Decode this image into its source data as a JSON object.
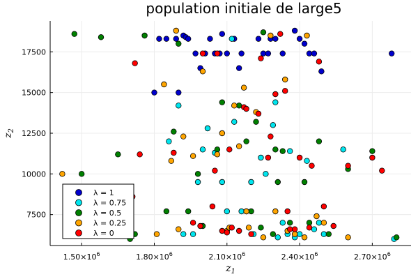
{
  "chart_data": {
    "type": "scatter",
    "title": "population initiale de large5",
    "xlabel": "z",
    "xlabel_sub": "1",
    "ylabel": "z",
    "ylabel_sub": "2",
    "xlim": [
      1370000,
      2860000
    ],
    "ylim": [
      5600000,
      19400
    ],
    "x_ticks": [
      1500000,
      1800000,
      2100000,
      2400000,
      2700000
    ],
    "x_tick_labels": [
      {
        "mantissa": "1.50×10",
        "exp": "6"
      },
      {
        "mantissa": "1.80×10",
        "exp": "6"
      },
      {
        "mantissa": "2.10×10",
        "exp": "6"
      },
      {
        "mantissa": "2.40×10",
        "exp": "6"
      },
      {
        "mantissa": "2.70×10",
        "exp": "6"
      }
    ],
    "y_ticks": [
      7500,
      10000,
      12500,
      15000,
      17500
    ],
    "y_tick_labels": [
      "7500",
      "10000",
      "12500",
      "15000",
      "17500"
    ],
    "grid": true,
    "legend_position": "bottom-left",
    "series": [
      {
        "name": "λ = 1",
        "color": "#0000cd",
        "points": [
          [
            1800000,
            15000
          ],
          [
            1820000,
            18300
          ],
          [
            1850000,
            18300
          ],
          [
            1890000,
            18300
          ],
          [
            1900000,
            15000
          ],
          [
            1920000,
            18500
          ],
          [
            1930000,
            18400
          ],
          [
            1940000,
            18300
          ],
          [
            1970000,
            17400
          ],
          [
            1990000,
            16500
          ],
          [
            2010000,
            17400
          ],
          [
            2030000,
            18300
          ],
          [
            2050000,
            17400
          ],
          [
            2070000,
            17400
          ],
          [
            2080000,
            18600
          ],
          [
            2100000,
            17400
          ],
          [
            2130000,
            18300
          ],
          [
            2150000,
            16500
          ],
          [
            2160000,
            17400
          ],
          [
            2230000,
            18300
          ],
          [
            2250000,
            17400
          ],
          [
            2270000,
            17400
          ],
          [
            2280000,
            18300
          ],
          [
            2300000,
            18300
          ],
          [
            2330000,
            17400
          ],
          [
            2380000,
            18800
          ],
          [
            2400000,
            18300
          ],
          [
            2420000,
            18000
          ],
          [
            2440000,
            17400
          ],
          [
            2460000,
            17400
          ],
          [
            2490000,
            16300
          ],
          [
            2780000,
            17400
          ]
        ]
      },
      {
        "name": "λ = 0.75",
        "color": "#00e5ee",
        "points": [
          [
            1860000,
            12000
          ],
          [
            1900000,
            14200
          ],
          [
            1920000,
            6300
          ],
          [
            1960000,
            6300
          ],
          [
            1980000,
            9500
          ],
          [
            2000000,
            11500
          ],
          [
            2020000,
            12800
          ],
          [
            2050000,
            11300
          ],
          [
            2080000,
            9500
          ],
          [
            2100000,
            7700
          ],
          [
            2120000,
            18300
          ],
          [
            2130000,
            13200
          ],
          [
            2160000,
            7700
          ],
          [
            2180000,
            7700
          ],
          [
            2200000,
            9500
          ],
          [
            2210000,
            6300
          ],
          [
            2240000,
            11000
          ],
          [
            2260000,
            10000
          ],
          [
            2290000,
            13000
          ],
          [
            2300000,
            14400
          ],
          [
            2310000,
            6100
          ],
          [
            2330000,
            7000
          ],
          [
            2350000,
            6300
          ],
          [
            2360000,
            11400
          ],
          [
            2380000,
            6100
          ],
          [
            2400000,
            6300
          ],
          [
            2430000,
            10800
          ],
          [
            2460000,
            6600
          ],
          [
            2480000,
            7000
          ],
          [
            2500000,
            6300
          ],
          [
            2580000,
            11500
          ],
          [
            2790000,
            6000
          ]
        ]
      },
      {
        "name": "λ = 0.5",
        "color": "#008000",
        "points": [
          [
            1470000,
            18600
          ],
          [
            1500000,
            10000
          ],
          [
            1580000,
            18400
          ],
          [
            1650000,
            11200
          ],
          [
            1690000,
            7000
          ],
          [
            1700000,
            6000
          ],
          [
            1720000,
            6300
          ],
          [
            1760000,
            18500
          ],
          [
            1850000,
            7700
          ],
          [
            1880000,
            12600
          ],
          [
            1900000,
            18000
          ],
          [
            1940000,
            7700
          ],
          [
            1980000,
            10000
          ],
          [
            2000000,
            6800
          ],
          [
            2060000,
            11500
          ],
          [
            2080000,
            14400
          ],
          [
            2150000,
            14200
          ],
          [
            2180000,
            12000
          ],
          [
            2200000,
            7700
          ],
          [
            2220000,
            13200
          ],
          [
            2240000,
            6700
          ],
          [
            2250000,
            18700
          ],
          [
            2290000,
            6300
          ],
          [
            2300000,
            11500
          ],
          [
            2310000,
            9500
          ],
          [
            2330000,
            11400
          ],
          [
            2360000,
            7000
          ],
          [
            2380000,
            6300
          ],
          [
            2420000,
            9500
          ],
          [
            2440000,
            7000
          ],
          [
            2480000,
            12000
          ],
          [
            2520000,
            6300
          ],
          [
            2600000,
            10300
          ],
          [
            2700000,
            11400
          ],
          [
            2800000,
            6100
          ]
        ]
      },
      {
        "name": "λ = 0.25",
        "color": "#ffa500",
        "points": [
          [
            1420000,
            10000
          ],
          [
            1810000,
            6300
          ],
          [
            1840000,
            15500
          ],
          [
            1870000,
            10800
          ],
          [
            1890000,
            18800
          ],
          [
            1900000,
            6600
          ],
          [
            1920000,
            12300
          ],
          [
            1960000,
            11100
          ],
          [
            2000000,
            16300
          ],
          [
            2060000,
            11200
          ],
          [
            2080000,
            12500
          ],
          [
            2100000,
            6500
          ],
          [
            2110000,
            6700
          ],
          [
            2130000,
            14200
          ],
          [
            2150000,
            11700
          ],
          [
            2170000,
            15300
          ],
          [
            2180000,
            7700
          ],
          [
            2190000,
            6700
          ],
          [
            2220000,
            13800
          ],
          [
            2250000,
            6100
          ],
          [
            2280000,
            18500
          ],
          [
            2300000,
            7700
          ],
          [
            2340000,
            15800
          ],
          [
            2350000,
            6500
          ],
          [
            2380000,
            6300
          ],
          [
            2420000,
            6100
          ],
          [
            2430000,
            18500
          ],
          [
            2470000,
            7400
          ],
          [
            2500000,
            7000
          ],
          [
            2600000,
            6100
          ]
        ]
      },
      {
        "name": "λ = 0",
        "color": "#ff0000",
        "points": [
          [
            1690000,
            6800
          ],
          [
            1710000,
            8600
          ],
          [
            1720000,
            16800
          ],
          [
            1740000,
            11200
          ],
          [
            1880000,
            11300
          ],
          [
            1960000,
            7000
          ],
          [
            1990000,
            6800
          ],
          [
            2000000,
            17400
          ],
          [
            2040000,
            8000
          ],
          [
            2050000,
            10200
          ],
          [
            2060000,
            17400
          ],
          [
            2080000,
            6500
          ],
          [
            2100000,
            6400
          ],
          [
            2110000,
            11500
          ],
          [
            2120000,
            6700
          ],
          [
            2150000,
            6500
          ],
          [
            2170000,
            14100
          ],
          [
            2180000,
            14000
          ],
          [
            2200000,
            6300
          ],
          [
            2230000,
            13700
          ],
          [
            2240000,
            17100
          ],
          [
            2270000,
            11000
          ],
          [
            2280000,
            12300
          ],
          [
            2300000,
            14900
          ],
          [
            2320000,
            18600
          ],
          [
            2340000,
            15100
          ],
          [
            2350000,
            7700
          ],
          [
            2360000,
            6600
          ],
          [
            2380000,
            6600
          ],
          [
            2400000,
            11000
          ],
          [
            2440000,
            6700
          ],
          [
            2450000,
            10500
          ],
          [
            2480000,
            16900
          ],
          [
            2500000,
            8000
          ],
          [
            2540000,
            6800
          ],
          [
            2600000,
            10500
          ],
          [
            2700000,
            11000
          ],
          [
            2740000,
            10200
          ]
        ]
      }
    ]
  }
}
